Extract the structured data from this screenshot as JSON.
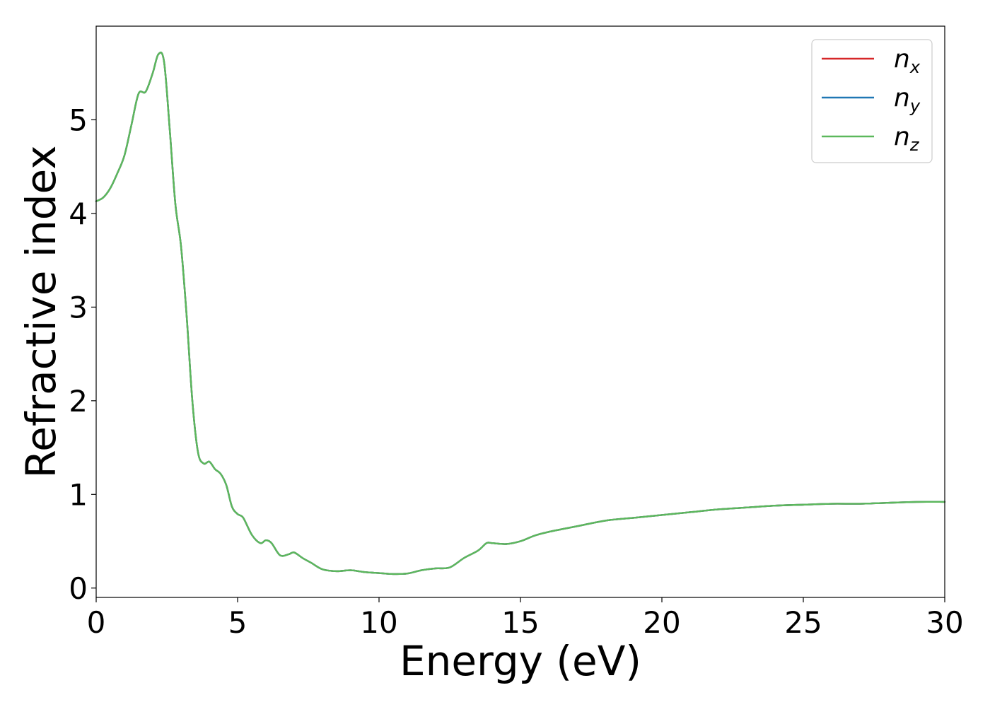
{
  "chart_data": {
    "type": "line",
    "xlabel": "Energy (eV)",
    "ylabel": "Refractive index",
    "xlim": [
      0,
      30
    ],
    "ylim": [
      -0.1,
      6.0
    ],
    "xticks": [
      0,
      5,
      10,
      15,
      20,
      25,
      30
    ],
    "yticks": [
      0,
      1,
      2,
      3,
      4,
      5
    ],
    "grid": false,
    "legend_position": "top-right",
    "x": [
      0,
      0.25,
      0.5,
      0.75,
      1.0,
      1.25,
      1.5,
      1.75,
      2.0,
      2.2,
      2.4,
      2.6,
      2.8,
      3.0,
      3.2,
      3.4,
      3.6,
      3.8,
      4.0,
      4.2,
      4.4,
      4.6,
      4.8,
      5.0,
      5.2,
      5.5,
      5.8,
      6.0,
      6.2,
      6.5,
      6.8,
      7.0,
      7.3,
      7.6,
      8.0,
      8.5,
      9.0,
      9.5,
      10.0,
      10.5,
      11.0,
      11.5,
      12.0,
      12.5,
      13.0,
      13.5,
      13.8,
      14.0,
      14.5,
      15.0,
      15.5,
      16.0,
      17.0,
      18.0,
      19.0,
      20.0,
      21.0,
      22.0,
      23.0,
      24.0,
      25.0,
      26.0,
      27.0,
      28.0,
      29.0,
      30.0
    ],
    "series": [
      {
        "name_base": "n",
        "name_sub": "x",
        "color": "#d62728",
        "values": [
          4.13,
          4.17,
          4.27,
          4.43,
          4.62,
          4.95,
          5.28,
          5.3,
          5.5,
          5.7,
          5.62,
          4.9,
          4.1,
          3.65,
          2.9,
          2.0,
          1.45,
          1.33,
          1.35,
          1.27,
          1.22,
          1.1,
          0.87,
          0.79,
          0.75,
          0.57,
          0.48,
          0.51,
          0.48,
          0.35,
          0.36,
          0.38,
          0.32,
          0.27,
          0.2,
          0.18,
          0.19,
          0.17,
          0.16,
          0.15,
          0.155,
          0.19,
          0.21,
          0.22,
          0.32,
          0.4,
          0.48,
          0.48,
          0.47,
          0.5,
          0.56,
          0.6,
          0.66,
          0.72,
          0.75,
          0.78,
          0.81,
          0.84,
          0.86,
          0.88,
          0.89,
          0.9,
          0.9,
          0.91,
          0.92,
          0.92
        ]
      },
      {
        "name_base": "n",
        "name_sub": "y",
        "color": "#1f77b4",
        "values": [
          4.13,
          4.17,
          4.27,
          4.43,
          4.62,
          4.95,
          5.28,
          5.3,
          5.5,
          5.7,
          5.62,
          4.9,
          4.1,
          3.65,
          2.9,
          2.0,
          1.45,
          1.33,
          1.35,
          1.27,
          1.22,
          1.1,
          0.87,
          0.79,
          0.75,
          0.57,
          0.48,
          0.51,
          0.48,
          0.35,
          0.36,
          0.38,
          0.32,
          0.27,
          0.2,
          0.18,
          0.19,
          0.17,
          0.16,
          0.15,
          0.155,
          0.19,
          0.21,
          0.22,
          0.32,
          0.4,
          0.48,
          0.48,
          0.47,
          0.5,
          0.56,
          0.6,
          0.66,
          0.72,
          0.75,
          0.78,
          0.81,
          0.84,
          0.86,
          0.88,
          0.89,
          0.9,
          0.9,
          0.91,
          0.92,
          0.92
        ]
      },
      {
        "name_base": "n",
        "name_sub": "z",
        "color": "#5cb85c",
        "values": [
          4.13,
          4.17,
          4.27,
          4.43,
          4.62,
          4.95,
          5.28,
          5.3,
          5.5,
          5.7,
          5.62,
          4.9,
          4.1,
          3.65,
          2.9,
          2.0,
          1.45,
          1.33,
          1.35,
          1.27,
          1.22,
          1.1,
          0.87,
          0.79,
          0.75,
          0.57,
          0.48,
          0.51,
          0.48,
          0.35,
          0.36,
          0.38,
          0.32,
          0.27,
          0.2,
          0.18,
          0.19,
          0.17,
          0.16,
          0.15,
          0.155,
          0.19,
          0.21,
          0.22,
          0.32,
          0.4,
          0.48,
          0.48,
          0.47,
          0.5,
          0.56,
          0.6,
          0.66,
          0.72,
          0.75,
          0.78,
          0.81,
          0.84,
          0.86,
          0.88,
          0.89,
          0.9,
          0.9,
          0.91,
          0.92,
          0.92
        ]
      }
    ]
  }
}
